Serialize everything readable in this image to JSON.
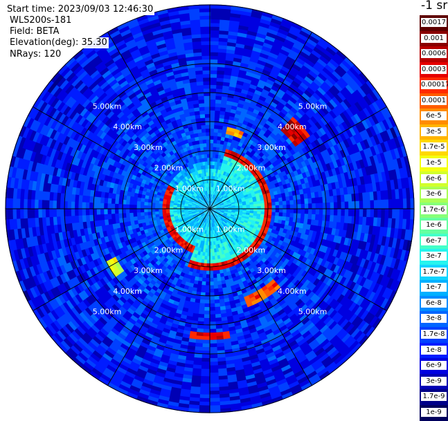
{
  "info": {
    "start_time": "Start time: 2023/09/03 12:46:30",
    "instrument": "WLS200s-181",
    "field": "Field: BETA",
    "elevation": "Elevation(deg): 35.30",
    "nrays": "NRays: 120"
  },
  "chart_data": {
    "type": "heatmap",
    "projection": "polar",
    "field": "BETA",
    "ring_labels": [
      "1.00km",
      "2.00km",
      "3.00km",
      "4.00km",
      "5.00km"
    ],
    "ring_ranges_km": [
      1,
      2,
      3,
      4,
      5
    ],
    "max_range_km": 6.1,
    "n_rays": 120,
    "n_spokes": 12,
    "colorbar": {
      "unit": "-1 sr",
      "labels": [
        "0.0017",
        "0.001",
        "0.0006",
        "0.0003",
        "0.00017",
        "0.0001",
        "6e-5",
        "3e-5",
        "1.7e-5",
        "1e-5",
        "6e-6",
        "3e-6",
        "1.7e-6",
        "1e-6",
        "6e-7",
        "3e-7",
        "1.7e-7",
        "1e-7",
        "6e-8",
        "3e-8",
        "1.7e-8",
        "1e-8",
        "6e-9",
        "3e-9",
        "1.7e-9",
        "1e-9"
      ],
      "colors": [
        "#5e0000",
        "#8a0000",
        "#b80000",
        "#e60000",
        "#ff2a00",
        "#ff5c00",
        "#ff8c00",
        "#ffb400",
        "#ffd800",
        "#f4ff10",
        "#d2ff2c",
        "#aaff54",
        "#86ff78",
        "#64ffa0",
        "#44ffc8",
        "#26f4ee",
        "#10d4ff",
        "#00b0ff",
        "#008cff",
        "#0066ff",
        "#0040ff",
        "#001cff",
        "#0000e0",
        "#0000b4",
        "#000088",
        "#00005c"
      ]
    }
  }
}
